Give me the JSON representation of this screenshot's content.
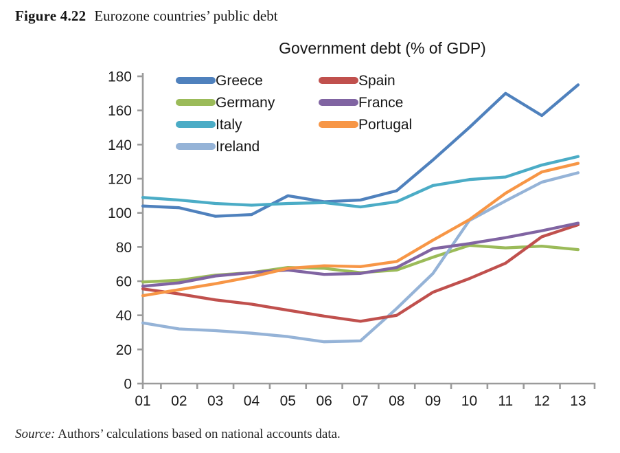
{
  "figure": {
    "label": "Figure 4.22",
    "caption": "Eurozone countries’ public debt"
  },
  "source": {
    "prefix": "Source:",
    "text": " Authors’ calculations based on national accounts data."
  },
  "chart_data": {
    "type": "line",
    "title": "Government debt (% of GDP)",
    "xlabel": "",
    "ylabel": "",
    "categories": [
      "01",
      "02",
      "03",
      "04",
      "05",
      "06",
      "07",
      "08",
      "09",
      "10",
      "11",
      "12",
      "13"
    ],
    "ylim": [
      0,
      180
    ],
    "ytick_step": 20,
    "grid": false,
    "legend_position": "top-left inside plot, two columns",
    "axis_color": "#9b9b9b",
    "series": [
      {
        "name": "Greece",
        "color": "#4F81BD",
        "values": [
          104,
          103,
          98,
          99,
          110,
          106.5,
          107.5,
          113,
          131,
          150,
          170,
          157,
          175
        ]
      },
      {
        "name": "Germany",
        "color": "#9BBB59",
        "values": [
          59.5,
          60.5,
          63.5,
          65,
          68,
          67.5,
          65,
          66.5,
          74,
          81,
          79.5,
          80.5,
          78.5
        ]
      },
      {
        "name": "Italy",
        "color": "#4BACC6",
        "values": [
          109,
          107.5,
          105.5,
          104.5,
          105.5,
          106,
          103.5,
          106.5,
          116,
          119.5,
          121,
          128,
          133
        ]
      },
      {
        "name": "Ireland",
        "color": "#95B3D7",
        "values": [
          35.5,
          32,
          31,
          29.5,
          27.5,
          24.5,
          25,
          44,
          64.5,
          95.5,
          107,
          118,
          123.5
        ]
      },
      {
        "name": "Spain",
        "color": "#C0504D",
        "values": [
          55.5,
          52.5,
          49,
          46.5,
          43,
          39.5,
          36.5,
          40,
          53.5,
          61.5,
          70.5,
          86,
          93
        ]
      },
      {
        "name": "France",
        "color": "#8064A2",
        "values": [
          57,
          59,
          63,
          65,
          66.5,
          64,
          64.5,
          68,
          79,
          82,
          85.5,
          89.5,
          94
        ]
      },
      {
        "name": "Portugal",
        "color": "#F79646",
        "values": [
          51.5,
          55,
          58.5,
          62.5,
          67.5,
          69,
          68.5,
          71.5,
          84,
          96,
          111.5,
          124,
          129
        ]
      }
    ],
    "legend_columns": [
      [
        "Greece",
        "Germany",
        "Italy",
        "Ireland"
      ],
      [
        "Spain",
        "France",
        "Portugal"
      ]
    ]
  }
}
